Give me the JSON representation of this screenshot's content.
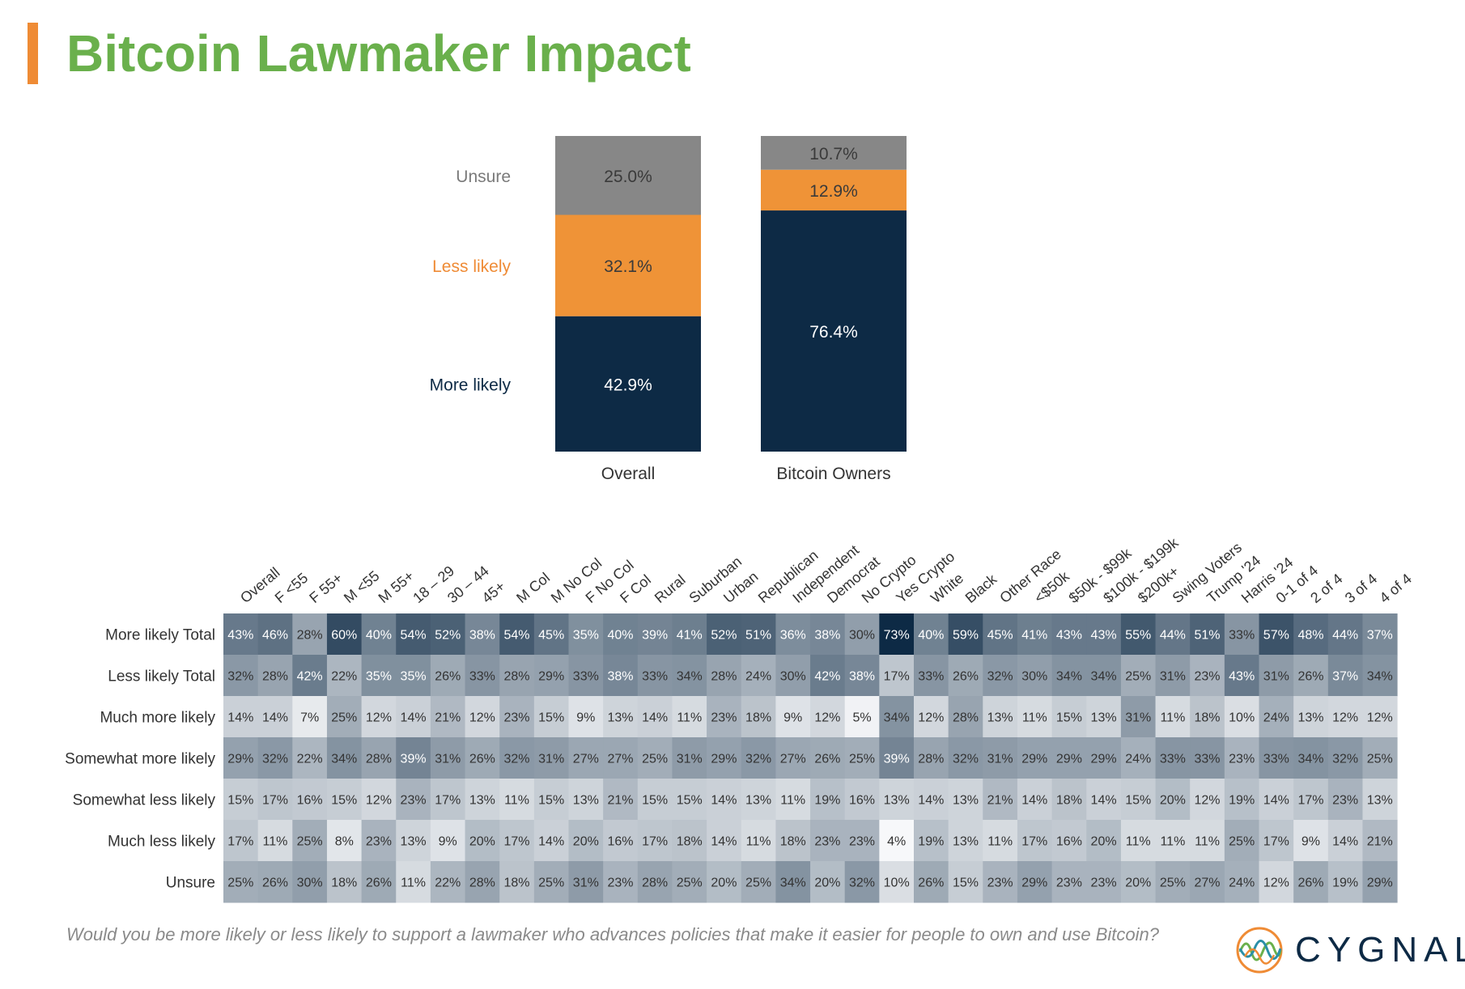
{
  "header": {
    "title": "Bitcoin Lawmaker Impact"
  },
  "chart_data": [
    {
      "type": "bar",
      "stacked": true,
      "categories": [
        "Overall",
        "Bitcoin Owners"
      ],
      "series": [
        {
          "name": "More likely",
          "values": [
            42.9,
            76.4
          ],
          "labels": [
            "42.9%",
            "76.4%"
          ],
          "color": "#0d2a45",
          "label_color": "#0d2a45",
          "value_color": "#ffffff"
        },
        {
          "name": "Less likely",
          "values": [
            32.1,
            12.9
          ],
          "labels": [
            "32.1%",
            "12.9%"
          ],
          "color": "#ef9337",
          "label_color": "#ef8b35",
          "value_color": "#3a3a3a"
        },
        {
          "name": "Unsure",
          "values": [
            25.0,
            10.7
          ],
          "labels": [
            "25.0%",
            "10.7%"
          ],
          "color": "#878787",
          "label_color": "#7a7a7a",
          "value_color": "#3a3a3a"
        }
      ],
      "ylim": [
        0,
        100
      ],
      "legend": "left"
    },
    {
      "type": "heatmap",
      "columns": [
        "Overall",
        "F <55",
        "F 55+",
        "M <55",
        "M 55+",
        "18 – 29",
        "30 – 44",
        "45+",
        "M Col",
        "M No Col",
        "F No Col",
        "F Col",
        "Rural",
        "Suburban",
        "Urban",
        "Republican",
        "Independent",
        "Democrat",
        "No Crypto",
        "Yes Crypto",
        "White",
        "Black",
        "Other Race",
        "<$50k",
        "$50k - $99k",
        "$100k - $199k",
        "$200k+",
        "Swing Voters",
        "Trump '24",
        "Harris '24",
        "0-1 of 4",
        "2 of 4",
        "3 of 4",
        "4 of 4"
      ],
      "rows": [
        {
          "label": "More likely Total",
          "values": [
            43,
            46,
            28,
            60,
            40,
            54,
            52,
            38,
            54,
            45,
            35,
            40,
            39,
            41,
            52,
            51,
            36,
            38,
            30,
            73,
            40,
            59,
            45,
            41,
            43,
            43,
            55,
            44,
            51,
            33,
            57,
            48,
            44,
            37
          ]
        },
        {
          "label": "Less likely Total",
          "values": [
            32,
            28,
            42,
            22,
            35,
            35,
            26,
            33,
            28,
            29,
            33,
            38,
            33,
            34,
            28,
            24,
            30,
            42,
            38,
            17,
            33,
            26,
            32,
            30,
            34,
            34,
            25,
            31,
            23,
            43,
            31,
            26,
            37,
            34
          ]
        },
        {
          "label": "Much more likely",
          "values": [
            14,
            14,
            7,
            25,
            12,
            14,
            21,
            12,
            23,
            15,
            9,
            13,
            14,
            11,
            23,
            18,
            9,
            12,
            5,
            34,
            12,
            28,
            13,
            11,
            15,
            13,
            31,
            11,
            18,
            10,
            24,
            13,
            12,
            12
          ]
        },
        {
          "label": "Somewhat more likely",
          "values": [
            29,
            32,
            22,
            34,
            28,
            39,
            31,
            26,
            32,
            31,
            27,
            27,
            25,
            31,
            29,
            32,
            27,
            26,
            25,
            39,
            28,
            32,
            31,
            29,
            29,
            29,
            24,
            33,
            33,
            23,
            33,
            34,
            32,
            25
          ]
        },
        {
          "label": "Somewhat less likely",
          "values": [
            15,
            17,
            16,
            15,
            12,
            23,
            17,
            13,
            11,
            15,
            13,
            21,
            15,
            15,
            14,
            13,
            11,
            19,
            16,
            13,
            14,
            13,
            21,
            14,
            18,
            14,
            15,
            20,
            12,
            19,
            14,
            17,
            23,
            13
          ]
        },
        {
          "label": "Much less likely",
          "values": [
            17,
            11,
            25,
            8,
            23,
            13,
            9,
            20,
            17,
            14,
            20,
            16,
            17,
            18,
            14,
            11,
            18,
            23,
            23,
            4,
            19,
            13,
            11,
            17,
            16,
            20,
            11,
            11,
            11,
            25,
            17,
            9,
            14,
            21
          ]
        },
        {
          "label": "Unsure",
          "values": [
            25,
            26,
            30,
            18,
            26,
            11,
            22,
            28,
            18,
            25,
            31,
            23,
            28,
            25,
            20,
            25,
            34,
            20,
            32,
            10,
            26,
            15,
            23,
            29,
            23,
            23,
            20,
            25,
            27,
            24,
            12,
            26,
            19,
            29
          ]
        }
      ],
      "value_suffix": "%",
      "color_low": "#f7f8fa",
      "color_high": "#0d2a45"
    }
  ],
  "footer": {
    "question": "Would you be more likely or less likely to support a lawmaker who advances policies that make it easier for people to own and use Bitcoin?",
    "logo_text": "CYGNAL",
    "logo_colors": [
      "#ef8b35",
      "#6ab04c",
      "#2a8fa8"
    ]
  }
}
